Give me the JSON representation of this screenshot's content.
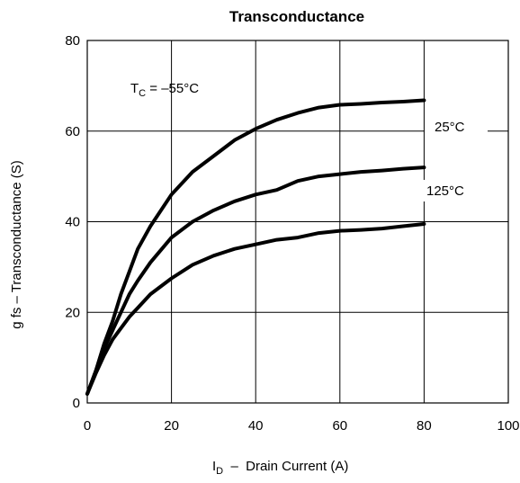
{
  "chart_data": {
    "type": "line",
    "title": "Transconductance",
    "xlabel": {
      "main": "I",
      "sub": "D",
      "rest": "  –  Drain Current (A)"
    },
    "ylabel": "g fs – Transconductance (S)",
    "xlim": [
      0,
      100
    ],
    "ylim": [
      0,
      80
    ],
    "xticks": [
      0,
      20,
      40,
      60,
      80,
      100
    ],
    "yticks": [
      0,
      20,
      40,
      60,
      80
    ],
    "grid": true,
    "series": [
      {
        "name": "TC = -55°C",
        "x": [
          0,
          2,
          4,
          6,
          8,
          10,
          12,
          15,
          20,
          25,
          30,
          35,
          40,
          45,
          50,
          55,
          60,
          65,
          70,
          75,
          80
        ],
        "y": [
          2,
          7,
          13,
          18,
          24,
          29,
          34,
          39,
          46,
          51,
          54.5,
          58,
          60.5,
          62.5,
          64,
          65.2,
          65.8,
          66,
          66.3,
          66.5,
          66.8
        ]
      },
      {
        "name": "25°C",
        "x": [
          0,
          2,
          4,
          6,
          8,
          10,
          12,
          15,
          20,
          25,
          30,
          35,
          40,
          45,
          50,
          55,
          60,
          65,
          70,
          75,
          80
        ],
        "y": [
          2,
          7,
          12,
          16,
          20,
          24,
          27,
          31,
          36.5,
          40,
          42.5,
          44.5,
          46,
          47,
          49,
          50,
          50.5,
          51,
          51.3,
          51.7,
          52
        ]
      },
      {
        "name": "125°C",
        "x": [
          0,
          2,
          4,
          6,
          8,
          10,
          12,
          15,
          20,
          25,
          30,
          35,
          40,
          45,
          50,
          55,
          60,
          65,
          70,
          75,
          80
        ],
        "y": [
          2,
          6.5,
          10.5,
          14,
          16.5,
          19,
          21,
          24,
          27.5,
          30.5,
          32.5,
          34,
          35,
          36,
          36.5,
          37.5,
          38,
          38.2,
          38.5,
          39,
          39.5
        ]
      }
    ],
    "annotations": {
      "tc_label": {
        "main": "T",
        "sub": "C",
        "rest": " = –55°C"
      },
      "label_25": "25°C",
      "label_125": "125°C"
    }
  }
}
